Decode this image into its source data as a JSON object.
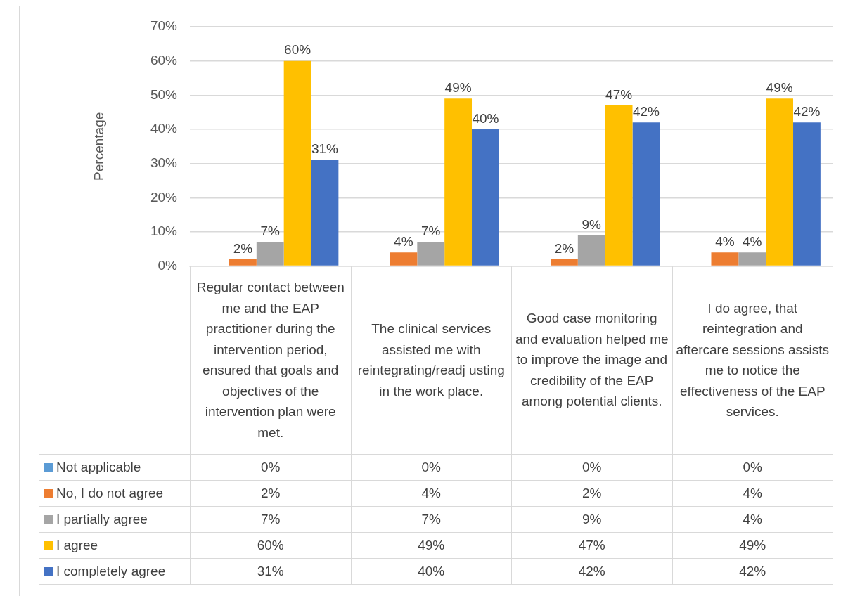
{
  "chart_data": {
    "type": "bar",
    "ylabel": "Percentage",
    "categories": [
      "Regular contact between me and the EAP practitioner during the intervention period, ensured that goals and objectives of the intervention plan were met.",
      "The clinical services assisted me with reintegrating/readj usting in the work place.",
      "Good case monitoring and evaluation helped me to improve the image and credibility of the EAP among potential clients.",
      "I do agree, that reintegration and aftercare sessions assists me to notice the effectiveness of the EAP services."
    ],
    "series": [
      {
        "name": "Not applicable",
        "color": "#5b9bd5",
        "values": [
          0,
          0,
          0,
          0
        ],
        "value_labels": [
          "0%",
          "0%",
          "0%",
          "0%"
        ]
      },
      {
        "name": "No, I do not agree",
        "color": "#ed7d31",
        "values": [
          2,
          4,
          2,
          4
        ],
        "value_labels": [
          "2%",
          "4%",
          "2%",
          "4%"
        ]
      },
      {
        "name": "I partially agree",
        "color": "#a5a5a5",
        "values": [
          7,
          7,
          9,
          4
        ],
        "value_labels": [
          "7%",
          "7%",
          "9%",
          "4%"
        ]
      },
      {
        "name": "I agree",
        "color": "#ffc000",
        "values": [
          60,
          49,
          47,
          49
        ],
        "value_labels": [
          "60%",
          "49%",
          "47%",
          "49%"
        ]
      },
      {
        "name": "I completely agree",
        "color": "#4472c4",
        "values": [
          31,
          40,
          42,
          42
        ],
        "value_labels": [
          "31%",
          "40%",
          "42%",
          "42%"
        ]
      }
    ],
    "ylim": [
      0,
      70
    ],
    "yticks": [
      {
        "value": 0,
        "label": "0%"
      },
      {
        "value": 10,
        "label": "10%"
      },
      {
        "value": 20,
        "label": "20%"
      },
      {
        "value": 30,
        "label": "30%"
      },
      {
        "value": 40,
        "label": "40%"
      },
      {
        "value": 50,
        "label": "50%"
      },
      {
        "value": 60,
        "label": "60%"
      },
      {
        "value": 70,
        "label": "70%"
      }
    ],
    "grid": "y",
    "legend": "bottom"
  }
}
